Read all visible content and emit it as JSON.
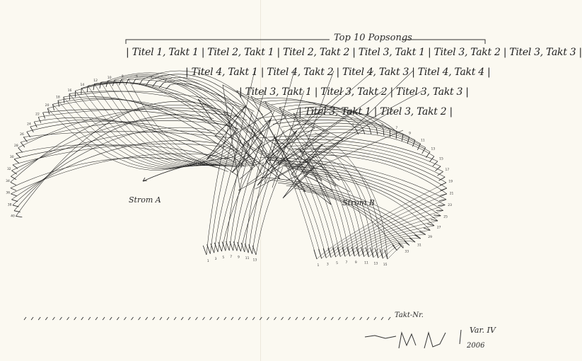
{
  "heading": "Top 10 Popsongs",
  "rows": [
    "| Titel 1, Takt 1 | Titel 2, Takt 1 | Titel 2, Takt 2 | Titel 3, Takt 1 | Titel 3, Takt 2 | Titel 3, Takt 3 |",
    "| Titel 4, Takt 1 | Titel 4, Takt 2 | Titel 4, Takt 3 | Titel 4, Takt 4 |",
    "| Titel 3, Takt 1 | Titel 3, Takt 2 | Titel 3, Takt 3 |",
    "| Titel 3, Takt 1 | Titel 3, Takt 2 |"
  ],
  "labels": {
    "stream_a": "Strom A",
    "stream_b": "Strom B"
  },
  "footnote": "Takt-Nr.",
  "version": "Var. IV",
  "year": "2006",
  "ink_color": "#1e1e1e",
  "paper_color": "#fbf9f1"
}
